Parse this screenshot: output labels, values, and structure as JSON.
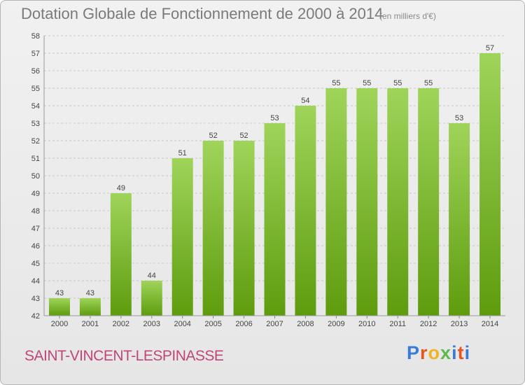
{
  "title": "Dotation Globale de Fonctionnement de 2000 à 2014",
  "subtitle": "(en milliers d'€)",
  "commune": "SAINT-VINCENT-LESPINASSE",
  "logo": {
    "letters": [
      "P",
      "r",
      "o",
      "x",
      "i",
      "t",
      "i"
    ]
  },
  "colors": {
    "bar_top": "#9fd45a",
    "bar_bottom": "#5e9c0e",
    "grid": "#c8c8c8",
    "commune": "#c0467a"
  },
  "chart_data": {
    "type": "bar",
    "categories": [
      "2000",
      "2001",
      "2002",
      "2003",
      "2004",
      "2005",
      "2006",
      "2007",
      "2008",
      "2009",
      "2010",
      "2011",
      "2012",
      "2013",
      "2014"
    ],
    "values": [
      43,
      43,
      49,
      44,
      51,
      52,
      52,
      53,
      54,
      55,
      55,
      55,
      55,
      53,
      57
    ],
    "ylim": [
      42,
      58
    ],
    "yticks": [
      42,
      43,
      44,
      45,
      46,
      47,
      48,
      49,
      50,
      51,
      52,
      53,
      54,
      55,
      56,
      57,
      58
    ],
    "grid": true,
    "legend": "none"
  }
}
